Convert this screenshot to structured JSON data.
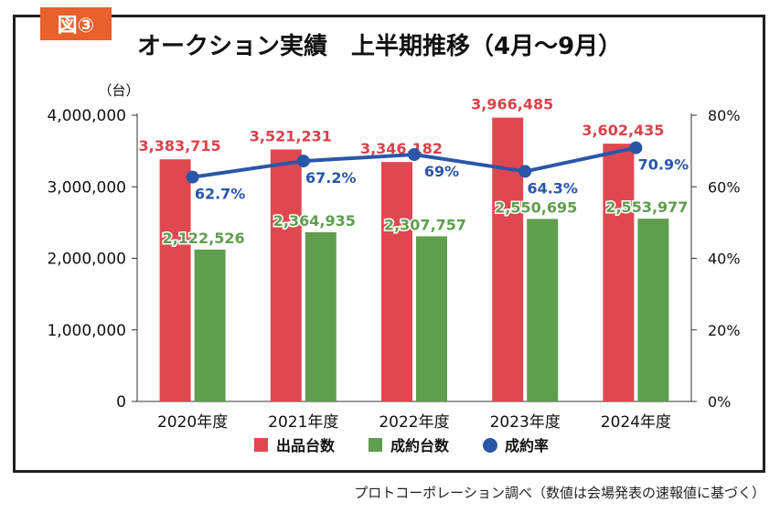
{
  "badge": "図③",
  "title": "オークション実績　上半期推移（4月〜9月）",
  "source": "プロトコーポレーション調べ（数値は会場発表の速報値に基づく）",
  "colors": {
    "listed": "#e0484f",
    "contracted": "#5f9e4e",
    "rate": "#2a56a8",
    "listed_label": "#d9424a",
    "contracted_label": "#5f9e4e",
    "rate_label": "#2a56a8",
    "badge": "#e8602c"
  },
  "chart_data": {
    "type": "bar",
    "categories": [
      "2020年度",
      "2021年度",
      "2022年度",
      "2023年度",
      "2024年度"
    ],
    "y_unit_label": "（台）",
    "ylim": [
      0,
      4000000
    ],
    "y_ticks": [
      "0",
      "1,000,000",
      "2,000,000",
      "3,000,000",
      "4,000,000"
    ],
    "y2lim": [
      0,
      80
    ],
    "y2_ticks": [
      "0%",
      "20%",
      "40%",
      "60%",
      "80%"
    ],
    "series": [
      {
        "name": "出品台数",
        "kind": "bar",
        "axis": "left",
        "values": [
          3383715,
          3521231,
          3346182,
          3966485,
          3602435
        ],
        "labels": [
          "3,383,715",
          "3,521,231",
          "3,346,182",
          "3,966,485",
          "3,602,435"
        ]
      },
      {
        "name": "成約台数",
        "kind": "bar",
        "axis": "left",
        "values": [
          2122526,
          2364935,
          2307757,
          2550695,
          2553977
        ],
        "labels": [
          "2,122,526",
          "2,364,935",
          "2,307,757",
          "2,550,695",
          "2,553,977"
        ]
      },
      {
        "name": "成約率",
        "kind": "line",
        "axis": "right",
        "values": [
          62.7,
          67.2,
          69,
          64.3,
          70.9
        ],
        "labels": [
          "62.7%",
          "67.2%",
          "69%",
          "64.3%",
          "70.9%"
        ]
      }
    ],
    "legend_position": "bottom",
    "grid": false
  }
}
